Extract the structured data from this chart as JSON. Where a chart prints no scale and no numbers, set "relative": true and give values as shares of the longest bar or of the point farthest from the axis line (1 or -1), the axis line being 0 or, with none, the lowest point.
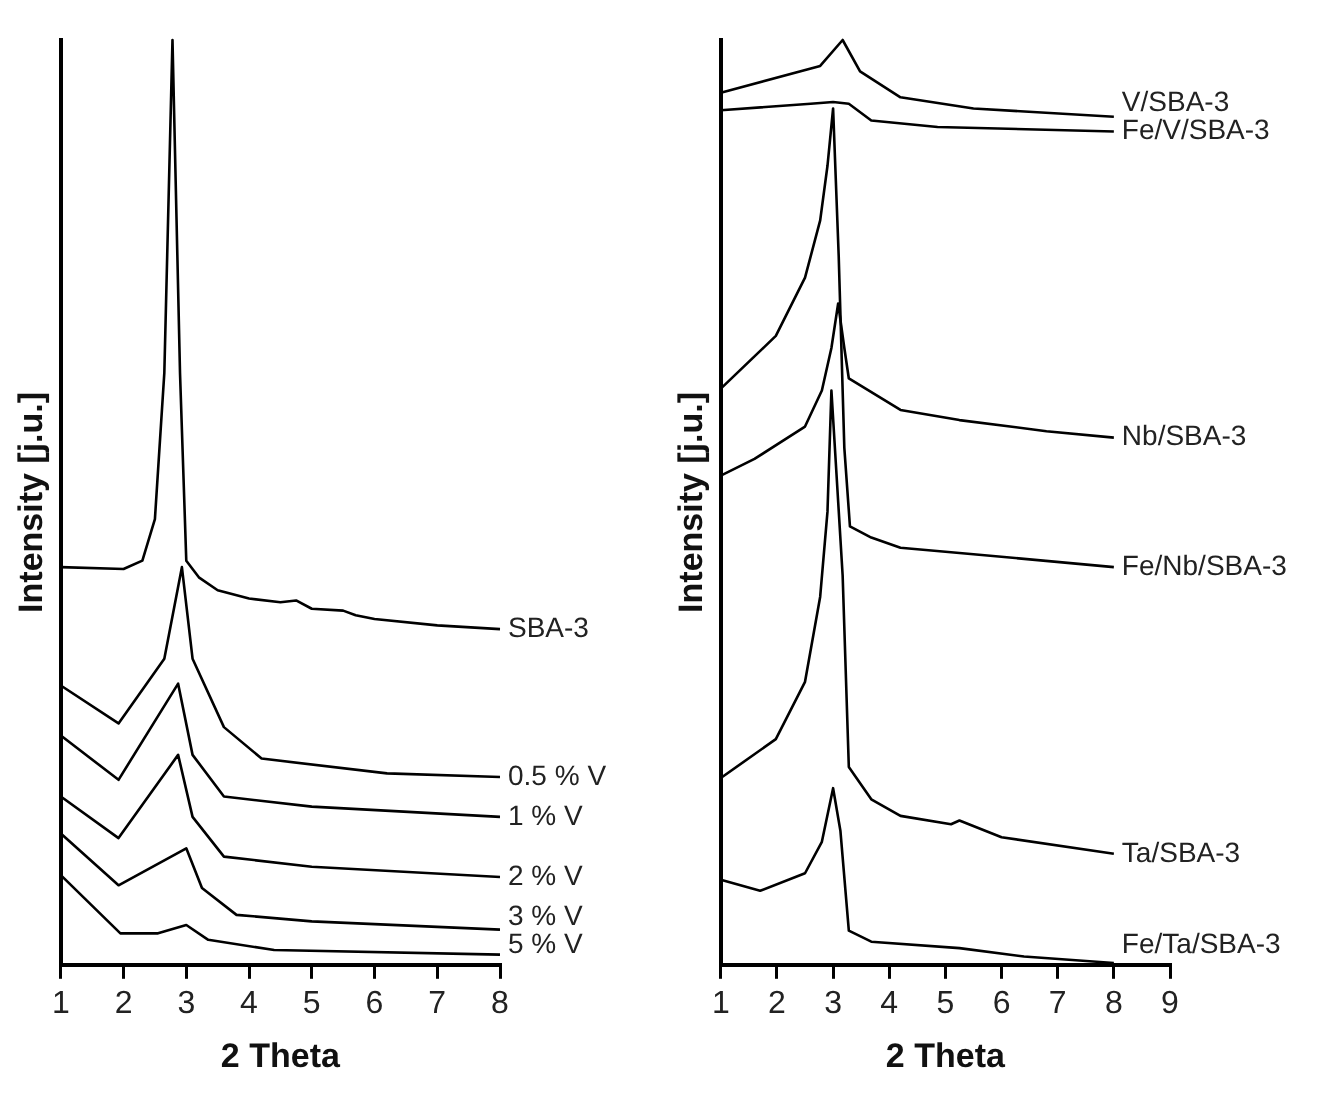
{
  "chart_data": [
    {
      "type": "line",
      "xlabel": "2 Theta",
      "ylabel": "Intensity [j.u.]",
      "relative": true,
      "xlim": [
        1,
        8
      ],
      "xticks": [
        1,
        2,
        3,
        4,
        5,
        6,
        7,
        8
      ],
      "tick_labels": "x",
      "marker": "none",
      "grid": false,
      "legend": false,
      "series": [
        {
          "name": "SBA-3",
          "color": "#000000",
          "x": [
            1,
            2,
            2.3,
            2.5,
            2.65,
            2.78,
            2.9,
            3.0,
            3.2,
            3.5,
            4,
            4.5,
            4.75,
            5,
            5.5,
            5.7,
            6,
            7,
            8
          ],
          "values": [
            0.43,
            0.428,
            0.437,
            0.482,
            0.64,
            1,
            0.64,
            0.437,
            0.419,
            0.405,
            0.396,
            0.392,
            0.394,
            0.385,
            0.383,
            0.378,
            0.374,
            0.367,
            0.363
          ]
        },
        {
          "name": "0.5 % V",
          "color": "#000000",
          "x": [
            1,
            1.92,
            2.65,
            2.93,
            3.1,
            3.6,
            4.2,
            6.2,
            8
          ],
          "values": [
            0.302,
            0.261,
            0.331,
            0.43,
            0.331,
            0.257,
            0.223,
            0.207,
            0.203
          ]
        },
        {
          "name": "1 % V",
          "color": "#000000",
          "x": [
            1,
            1.92,
            2.87,
            3.1,
            3.6,
            5,
            8
          ],
          "values": [
            0.248,
            0.2,
            0.304,
            0.227,
            0.182,
            0.171,
            0.16
          ]
        },
        {
          "name": "2 % V",
          "color": "#000000",
          "x": [
            1,
            1.92,
            2.87,
            3.1,
            3.6,
            5,
            8
          ],
          "values": [
            0.182,
            0.137,
            0.227,
            0.16,
            0.117,
            0.106,
            0.095
          ]
        },
        {
          "name": "3 % V",
          "color": "#000000",
          "x": [
            1,
            1.92,
            3.0,
            3.25,
            3.8,
            5,
            8
          ],
          "values": [
            0.142,
            0.086,
            0.126,
            0.083,
            0.054,
            0.047,
            0.038
          ]
        },
        {
          "name": "5 % V",
          "color": "#000000",
          "x": [
            1,
            1.95,
            2.55,
            3.0,
            3.35,
            4.4,
            8
          ],
          "values": [
            0.097,
            0.034,
            0.034,
            0.043,
            0.027,
            0.016,
            0.011
          ]
        }
      ]
    },
    {
      "type": "line",
      "xlabel": "2 Theta",
      "ylabel": "Intensity [j.u.]",
      "relative": true,
      "xlim": [
        1,
        9
      ],
      "xticks": [
        1,
        2,
        3,
        4,
        5,
        6,
        7,
        8,
        9
      ],
      "tick_labels": "x",
      "marker": "none",
      "grid": false,
      "legend": false,
      "series": [
        {
          "name": "V/SBA-3",
          "color": "#000000",
          "x": [
            1,
            2.77,
            3.17,
            3.48,
            4.2,
            5.5,
            8
          ],
          "values": [
            0.943,
            0.972,
            1,
            0.966,
            0.938,
            0.926,
            0.917
          ]
        },
        {
          "name": "Fe/V/SBA-3",
          "color": "#000000",
          "x": [
            1,
            2.6,
            3.0,
            3.28,
            3.68,
            4.86,
            8
          ],
          "values": [
            0.924,
            0.931,
            0.933,
            0.931,
            0.913,
            0.906,
            0.901
          ]
        },
        {
          "name": "Nb/SBA-3",
          "color": "#000000",
          "x": [
            1,
            1.6,
            2.5,
            2.8,
            2.97,
            3.09,
            3.2,
            3.28,
            4.2,
            5.25,
            6.8,
            8
          ],
          "values": [
            0.529,
            0.547,
            0.582,
            0.621,
            0.667,
            0.715,
            0.667,
            0.634,
            0.6,
            0.589,
            0.577,
            0.57
          ]
        },
        {
          "name": "Fe/Nb/SBA-3",
          "color": "#000000",
          "x": [
            1,
            1.98,
            2.5,
            2.77,
            2.9,
            3.0,
            3.1,
            3.2,
            3.3,
            3.68,
            4.2,
            5.5,
            8
          ],
          "values": [
            0.623,
            0.68,
            0.743,
            0.805,
            0.864,
            0.926,
            0.766,
            0.559,
            0.474,
            0.462,
            0.451,
            0.444,
            0.43
          ]
        },
        {
          "name": "Ta/SBA-3",
          "color": "#000000",
          "x": [
            1,
            1.98,
            2.5,
            2.77,
            2.9,
            2.97,
            3.17,
            3.28,
            3.68,
            4.2,
            5.1,
            5.25,
            6.0,
            8
          ],
          "values": [
            0.202,
            0.244,
            0.306,
            0.398,
            0.49,
            0.621,
            0.421,
            0.214,
            0.179,
            0.161,
            0.152,
            0.156,
            0.138,
            0.12
          ]
        },
        {
          "name": "Fe/Ta/SBA-3",
          "color": "#000000",
          "x": [
            1,
            1.7,
            2.5,
            2.8,
            3.0,
            3.13,
            3.28,
            3.68,
            5.25,
            6.4,
            8
          ],
          "values": [
            0.092,
            0.08,
            0.099,
            0.133,
            0.191,
            0.145,
            0.037,
            0.025,
            0.018,
            0.009,
            0.002
          ]
        }
      ]
    }
  ]
}
